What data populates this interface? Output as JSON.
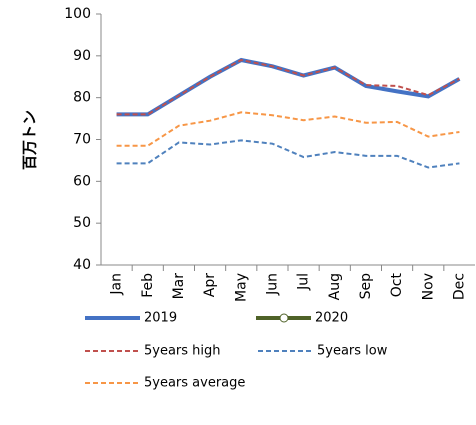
{
  "chart_data": {
    "type": "line",
    "y_label": "百万トン",
    "categories": [
      "Jan",
      "Feb",
      "Mar",
      "Apr",
      "May",
      "Jun",
      "Jul",
      "Aug",
      "Sep",
      "Oct",
      "Nov",
      "Dec"
    ],
    "ylim": [
      40,
      100
    ],
    "yticks": [
      40,
      50,
      60,
      70,
      80,
      90,
      100
    ],
    "grid": false,
    "legend": "bottom",
    "series": [
      {
        "name": "2019",
        "color": "#4472c4",
        "width": 4,
        "dash": false,
        "marker": false,
        "values": [
          76,
          76,
          80.5,
          85,
          89,
          87.5,
          85.3,
          87.2,
          82.8,
          81.5,
          80.3,
          84.5
        ]
      },
      {
        "name": "2020",
        "color": "#4f6228",
        "width": 4,
        "dash": false,
        "marker": true,
        "values": [
          null,
          null,
          null,
          null,
          null,
          null,
          null,
          null,
          null,
          null,
          null,
          null
        ]
      },
      {
        "name": "5years high",
        "color": "#c0504d",
        "width": 2,
        "dash": true,
        "marker": false,
        "values": [
          76,
          76,
          80.5,
          85,
          89,
          87.5,
          85.3,
          87.2,
          83,
          82.8,
          80.6,
          84.5
        ]
      },
      {
        "name": "5years low",
        "color": "#4f81bd",
        "width": 2,
        "dash": true,
        "marker": false,
        "values": [
          64.3,
          64.3,
          69.3,
          68.8,
          69.8,
          69,
          65.8,
          67,
          66.1,
          66.1,
          63.3,
          64.3
        ]
      },
      {
        "name": "5years average",
        "color": "#f79646",
        "width": 2,
        "dash": true,
        "marker": false,
        "values": [
          68.5,
          68.5,
          73.3,
          74.5,
          76.5,
          75.8,
          74.6,
          75.5,
          74,
          74.2,
          70.7,
          71.8
        ]
      }
    ]
  }
}
